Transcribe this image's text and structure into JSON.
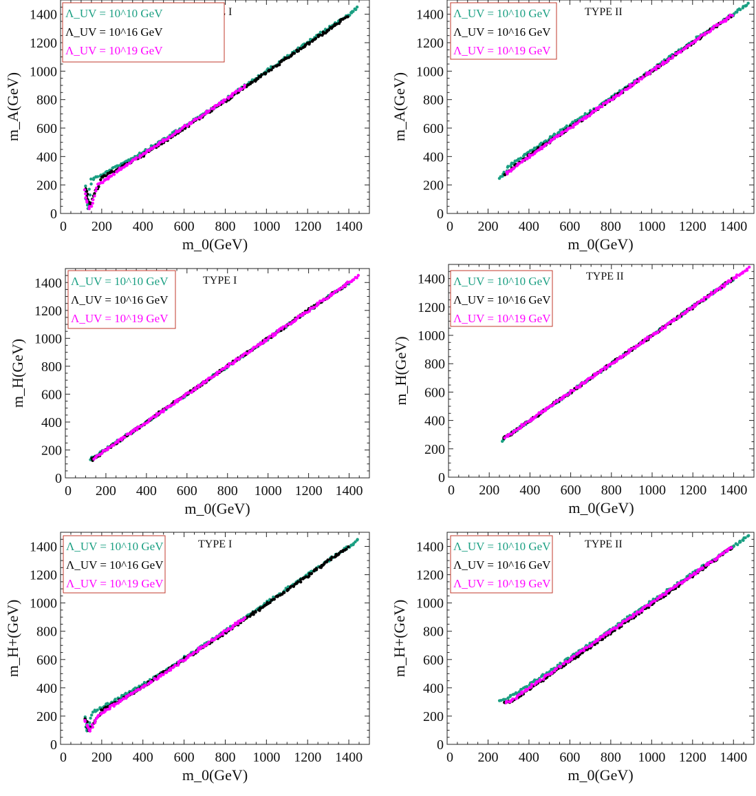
{
  "colors": {
    "series": [
      "#1a9f82",
      "#000000",
      "#ff00ff"
    ],
    "legend_border": "#c0392b",
    "axis": "#222222"
  },
  "chart_data": [
    {
      "type": "scatter",
      "title": "TYPE I",
      "xlabel": "m_0(GeV)",
      "ylabel": "m_A(GeV)",
      "xlim": [
        0,
        1500
      ],
      "ylim": [
        0,
        1500
      ],
      "xticks": [
        0,
        200,
        400,
        600,
        800,
        1000,
        1200,
        1400
      ],
      "yticks": [
        0,
        200,
        400,
        600,
        800,
        1000,
        1200,
        1400
      ],
      "legend": [
        "Λ_UV = 10^10 GeV",
        "Λ_UV = 10^16 GeV",
        "Λ_UV = 10^19 GeV"
      ],
      "legend_position": "top-left",
      "series": [
        {
          "name": "Λ_UV = 10^10 GeV",
          "x": [
            120,
            130,
            150,
            200,
            300,
            400,
            600,
            800,
            1000,
            1200,
            1400,
            1450
          ],
          "y": [
            190,
            30,
            240,
            270,
            350,
            430,
            610,
            800,
            1000,
            1200,
            1400,
            1450
          ]
        },
        {
          "name": "Λ_UV = 10^16 GeV",
          "x": [
            120,
            140,
            200,
            300,
            400,
            600,
            800,
            1000,
            1200,
            1400
          ],
          "y": [
            170,
            60,
            250,
            330,
            410,
            600,
            790,
            990,
            1190,
            1390
          ]
        },
        {
          "name": "Λ_UV = 10^19 GeV",
          "x": [
            120,
            140,
            180,
            250,
            350,
            500,
            700,
            900
          ],
          "y": [
            160,
            30,
            200,
            270,
            370,
            510,
            700,
            900
          ]
        }
      ]
    },
    {
      "type": "scatter",
      "title": "TYPE II",
      "xlabel": "m_0(GeV)",
      "ylabel": "m_A(GeV)",
      "xlim": [
        0,
        1500
      ],
      "ylim": [
        0,
        1500
      ],
      "xticks": [
        0,
        200,
        400,
        600,
        800,
        1000,
        1200,
        1400
      ],
      "yticks": [
        0,
        200,
        400,
        600,
        800,
        1000,
        1200,
        1400
      ],
      "legend": [
        "Λ_UV = 10^10 GeV",
        "Λ_UV = 10^16 GeV",
        "Λ_UV = 10^19 GeV"
      ],
      "legend_position": "top-left",
      "series": [
        {
          "name": "Λ_UV = 10^10 GeV",
          "x": [
            260,
            300,
            400,
            600,
            800,
            1000,
            1200,
            1400,
            1480
          ],
          "y": [
            240,
            330,
            430,
            620,
            810,
            1010,
            1210,
            1400,
            1480
          ]
        },
        {
          "name": "Λ_UV = 10^16 GeV",
          "x": [
            280,
            400,
            600,
            800,
            1000,
            1200,
            1400
          ],
          "y": [
            270,
            410,
            600,
            800,
            1000,
            1200,
            1400
          ]
        },
        {
          "name": "Λ_UV = 10^19 GeV",
          "x": [
            290,
            400,
            600,
            800,
            1000,
            1200,
            1400
          ],
          "y": [
            280,
            400,
            600,
            800,
            1000,
            1200,
            1400
          ]
        }
      ]
    },
    {
      "type": "scatter",
      "title": "TYPE I",
      "xlabel": "m_0(GeV)",
      "ylabel": "m_H(GeV)",
      "xlim": [
        0,
        1500
      ],
      "ylim": [
        0,
        1500
      ],
      "xticks": [
        0,
        200,
        400,
        600,
        800,
        1000,
        1200,
        1400
      ],
      "yticks": [
        0,
        200,
        400,
        600,
        800,
        1000,
        1200,
        1400
      ],
      "legend": [
        "Λ_UV = 10^10 GeV",
        "Λ_UV = 10^16 GeV",
        "Λ_UV = 10^19 GeV"
      ],
      "legend_position": "top-left",
      "series": [
        {
          "name": "Λ_UV = 10^10 GeV",
          "x": [
            120,
            200,
            400,
            600,
            800,
            1000,
            1200,
            1400
          ],
          "y": [
            135,
            205,
            400,
            600,
            800,
            1000,
            1200,
            1400
          ]
        },
        {
          "name": "Λ_UV = 10^16 GeV",
          "x": [
            130,
            200,
            400,
            600,
            800,
            1000,
            1200,
            1400
          ],
          "y": [
            130,
            200,
            400,
            600,
            800,
            1000,
            1200,
            1400
          ]
        },
        {
          "name": "Λ_UV = 10^19 GeV",
          "x": [
            140,
            200,
            400,
            600,
            800,
            1000,
            1200,
            1450
          ],
          "y": [
            140,
            200,
            400,
            600,
            800,
            1000,
            1200,
            1450
          ]
        }
      ]
    },
    {
      "type": "scatter",
      "title": "TYPE II",
      "xlabel": "m_0(GeV)",
      "ylabel": "m_H(GeV)",
      "xlim": [
        0,
        1500
      ],
      "ylim": [
        0,
        1500
      ],
      "xticks": [
        0,
        200,
        400,
        600,
        800,
        1000,
        1200,
        1400
      ],
      "yticks": [
        0,
        200,
        400,
        600,
        800,
        1000,
        1200,
        1400
      ],
      "legend": [
        "Λ_UV = 10^10 GeV",
        "Λ_UV = 10^16 GeV",
        "Λ_UV = 10^19 GeV"
      ],
      "legend_position": "top-left",
      "series": [
        {
          "name": "Λ_UV = 10^10 GeV",
          "x": [
            260,
            400,
            600,
            800,
            1000,
            1200,
            1400
          ],
          "y": [
            260,
            400,
            600,
            800,
            1000,
            1200,
            1400
          ]
        },
        {
          "name": "Λ_UV = 10^16 GeV",
          "x": [
            270,
            400,
            600,
            800,
            1000,
            1200,
            1400
          ],
          "y": [
            270,
            400,
            600,
            800,
            1000,
            1200,
            1400
          ]
        },
        {
          "name": "Λ_UV = 10^19 GeV",
          "x": [
            280,
            400,
            600,
            800,
            1000,
            1200,
            1480
          ],
          "y": [
            280,
            400,
            600,
            800,
            1000,
            1200,
            1480
          ]
        }
      ]
    },
    {
      "type": "scatter",
      "title": "TYPE I",
      "xlabel": "m_0(GeV)",
      "ylabel": "m_H+(GeV)",
      "xlim": [
        0,
        1500
      ],
      "ylim": [
        0,
        1500
      ],
      "xticks": [
        0,
        200,
        400,
        600,
        800,
        1000,
        1200,
        1400
      ],
      "yticks": [
        0,
        200,
        400,
        600,
        800,
        1000,
        1200,
        1400
      ],
      "legend": [
        "Λ_UV = 10^10 GeV",
        "Λ_UV = 10^16 GeV",
        "Λ_UV = 10^19 GeV"
      ],
      "legend_position": "top-left",
      "series": [
        {
          "name": "Λ_UV = 10^10 GeV",
          "x": [
            120,
            130,
            160,
            200,
            300,
            400,
            600,
            800,
            1000,
            1200,
            1400,
            1450
          ],
          "y": [
            200,
            90,
            230,
            260,
            340,
            420,
            610,
            800,
            1000,
            1200,
            1400,
            1450
          ]
        },
        {
          "name": "Λ_UV = 10^16 GeV",
          "x": [
            120,
            140,
            200,
            300,
            400,
            600,
            800,
            1000,
            1200,
            1400
          ],
          "y": [
            180,
            100,
            240,
            320,
            410,
            600,
            790,
            990,
            1190,
            1400
          ]
        },
        {
          "name": "Λ_UV = 10^19 GeV",
          "x": [
            120,
            140,
            180,
            250,
            350,
            500,
            700,
            900
          ],
          "y": [
            170,
            90,
            200,
            270,
            360,
            500,
            700,
            900
          ]
        }
      ]
    },
    {
      "type": "scatter",
      "title": "TYPE II",
      "xlabel": "m_0(GeV)",
      "ylabel": "m_H+(GeV)",
      "xlim": [
        0,
        1500
      ],
      "ylim": [
        0,
        1500
      ],
      "xticks": [
        0,
        200,
        400,
        600,
        800,
        1000,
        1200,
        1400
      ],
      "yticks": [
        0,
        200,
        400,
        600,
        800,
        1000,
        1200,
        1400
      ],
      "legend": [
        "Λ_UV = 10^10 GeV",
        "Λ_UV = 10^16 GeV",
        "Λ_UV = 10^19 GeV"
      ],
      "legend_position": "top-left",
      "series": [
        {
          "name": "Λ_UV = 10^10 GeV",
          "x": [
            260,
            300,
            400,
            600,
            800,
            1000,
            1200,
            1400,
            1480
          ],
          "y": [
            305,
            330,
            420,
            610,
            810,
            1010,
            1210,
            1400,
            1480
          ]
        },
        {
          "name": "Λ_UV = 10^16 GeV",
          "x": [
            280,
            320,
            400,
            600,
            800,
            1000,
            1200,
            1400
          ],
          "y": [
            300,
            300,
            390,
            590,
            790,
            990,
            1190,
            1400
          ]
        },
        {
          "name": "Λ_UV = 10^19 GeV",
          "x": [
            290,
            320,
            400,
            600,
            800,
            1000,
            1200,
            1400
          ],
          "y": [
            300,
            310,
            400,
            600,
            800,
            1000,
            1200,
            1400
          ]
        }
      ]
    }
  ]
}
